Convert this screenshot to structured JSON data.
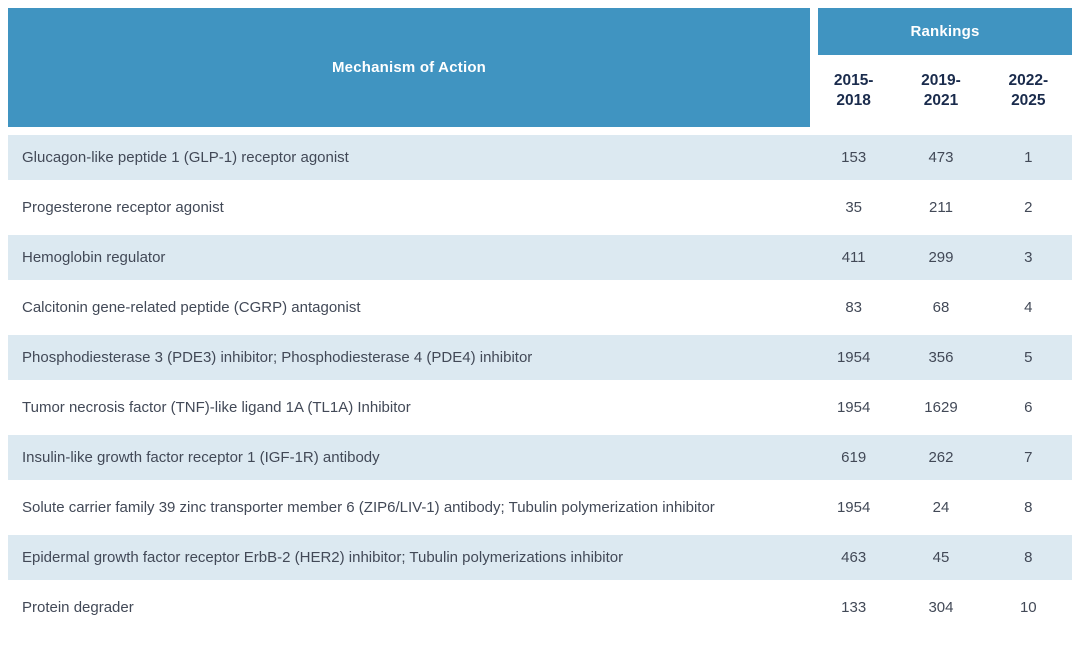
{
  "chart_data": {
    "type": "table",
    "row_header": "Mechanism of Action",
    "column_group_header": "Rankings",
    "period_columns": [
      {
        "label": "2015-2018",
        "line1": "2015-",
        "line2": "2018"
      },
      {
        "label": "2019-2021",
        "line1": "2019-",
        "line2": "2021"
      },
      {
        "label": "2022-2025",
        "line1": "2022-",
        "line2": "2025"
      }
    ],
    "rows": [
      {
        "moa": "Glucagon-like peptide 1 (GLP-1) receptor agonist",
        "rank_2015_2018": "153",
        "rank_2019_2021": "473",
        "rank_2022_2025": "1"
      },
      {
        "moa": "Progesterone receptor agonist",
        "rank_2015_2018": "35",
        "rank_2019_2021": "211",
        "rank_2022_2025": "2"
      },
      {
        "moa": "Hemoglobin regulator",
        "rank_2015_2018": "411",
        "rank_2019_2021": "299",
        "rank_2022_2025": "3"
      },
      {
        "moa": "Calcitonin gene-related peptide (CGRP) antagonist",
        "rank_2015_2018": "83",
        "rank_2019_2021": "68",
        "rank_2022_2025": "4"
      },
      {
        "moa": "Phosphodiesterase 3 (PDE3) inhibitor; Phosphodiesterase 4 (PDE4) inhibitor",
        "rank_2015_2018": "1954",
        "rank_2019_2021": "356",
        "rank_2022_2025": "5"
      },
      {
        "moa": "Tumor necrosis factor (TNF)-like ligand 1A (TL1A) Inhibitor",
        "rank_2015_2018": "1954",
        "rank_2019_2021": "1629",
        "rank_2022_2025": "6"
      },
      {
        "moa": "Insulin-like growth factor receptor 1 (IGF-1R) antibody",
        "rank_2015_2018": "619",
        "rank_2019_2021": "262",
        "rank_2022_2025": "7"
      },
      {
        "moa": "Solute carrier family 39 zinc transporter member 6 (ZIP6/LIV-1) antibody; Tubulin polymerization inhibitor",
        "rank_2015_2018": "1954",
        "rank_2019_2021": "24",
        "rank_2022_2025": "8"
      },
      {
        "moa": "Epidermal growth factor receptor ErbB-2 (HER2) inhibitor; Tubulin polymerizations inhibitor",
        "rank_2015_2018": "463",
        "rank_2019_2021": "45",
        "rank_2022_2025": "8"
      },
      {
        "moa": "Protein degrader",
        "rank_2015_2018": "133",
        "rank_2019_2021": "304",
        "rank_2022_2025": "10"
      }
    ]
  },
  "colors": {
    "header_blue": "#4094c1",
    "row_stripe_blue": "#dce9f1",
    "period_text_navy": "#1a2b4c",
    "body_text_gray": "#424957",
    "header_text_white": "#ffffff",
    "background": "#ffffff"
  }
}
